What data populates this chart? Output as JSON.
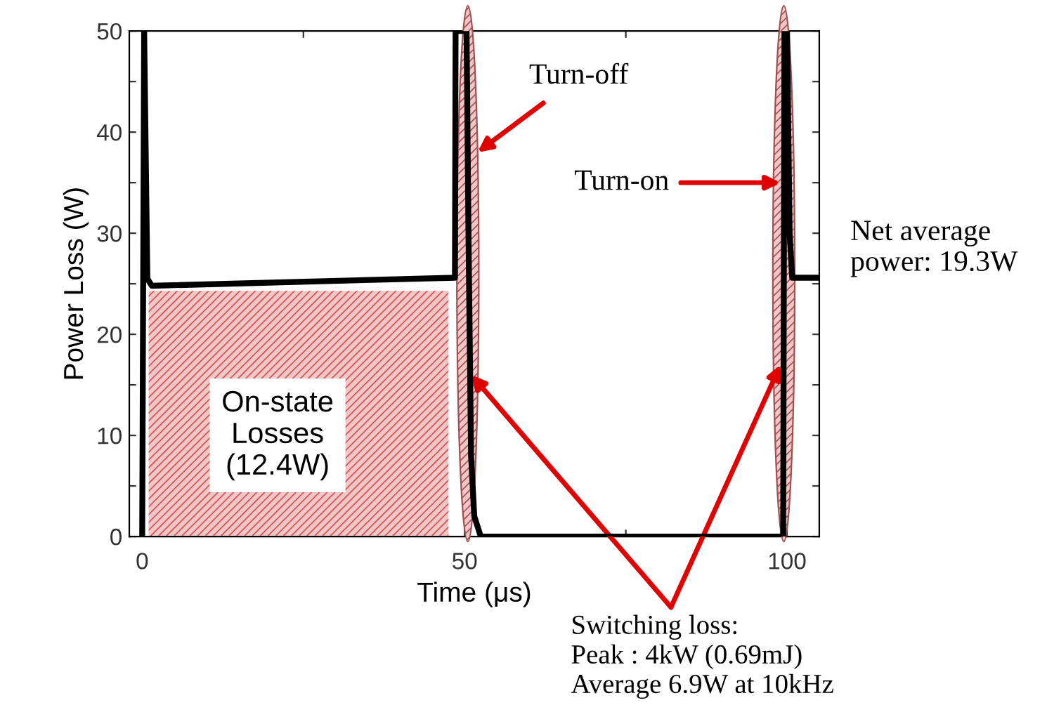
{
  "chart_data": {
    "type": "line",
    "xlabel": "Time (μs)",
    "ylabel": "Power Loss (W)",
    "xlim": [
      -2,
      105
    ],
    "ylim": [
      0,
      50
    ],
    "xticks": [
      0,
      {
        "value": 25,
        "label": null
      },
      50,
      {
        "value": 75,
        "label": null
      },
      100
    ],
    "yticks": [
      0,
      {
        "value": 5,
        "label": null
      },
      10,
      {
        "value": 15,
        "label": null
      },
      20,
      {
        "value": 25,
        "label": null
      },
      30,
      {
        "value": 35,
        "label": null
      },
      40,
      {
        "value": 45,
        "label": null
      },
      50
    ],
    "series": [
      {
        "type": "area",
        "color": "#f2c6c6",
        "x": [
          1,
          47.5
        ],
        "values": [
          24.3,
          24.3
        ]
      },
      {
        "color": "#000000",
        "x": [
          0,
          0.3,
          0.8,
          1.5,
          48.5,
          48.6,
          49.0,
          50.3,
          50.6,
          51.0,
          51.5,
          52.5,
          99.4,
          99.6,
          100.0,
          100.4,
          100.8,
          105
        ],
        "values": [
          0,
          50,
          25.5,
          24.8,
          25.6,
          50,
          50,
          50,
          30,
          8,
          2,
          0,
          0,
          50,
          50,
          30,
          25.6,
          25.6
        ]
      }
    ],
    "annotations": [
      "On-state\nLosses\n(12.4W)",
      {
        "text": "Turn-off",
        "x": 52,
        "y": 38
      },
      {
        "text": "Turn-on",
        "x": 99,
        "y": 35
      },
      "Net average\npower: 19.3W",
      {
        "text": "Switching loss:\nPeak : 4kW (0.69mJ)\nAverage 6.9W at 10kHz",
        "x": 51,
        "y": 16
      }
    ],
    "grid": false,
    "legend": false,
    "line_style": "solid",
    "marker": "none"
  }
}
